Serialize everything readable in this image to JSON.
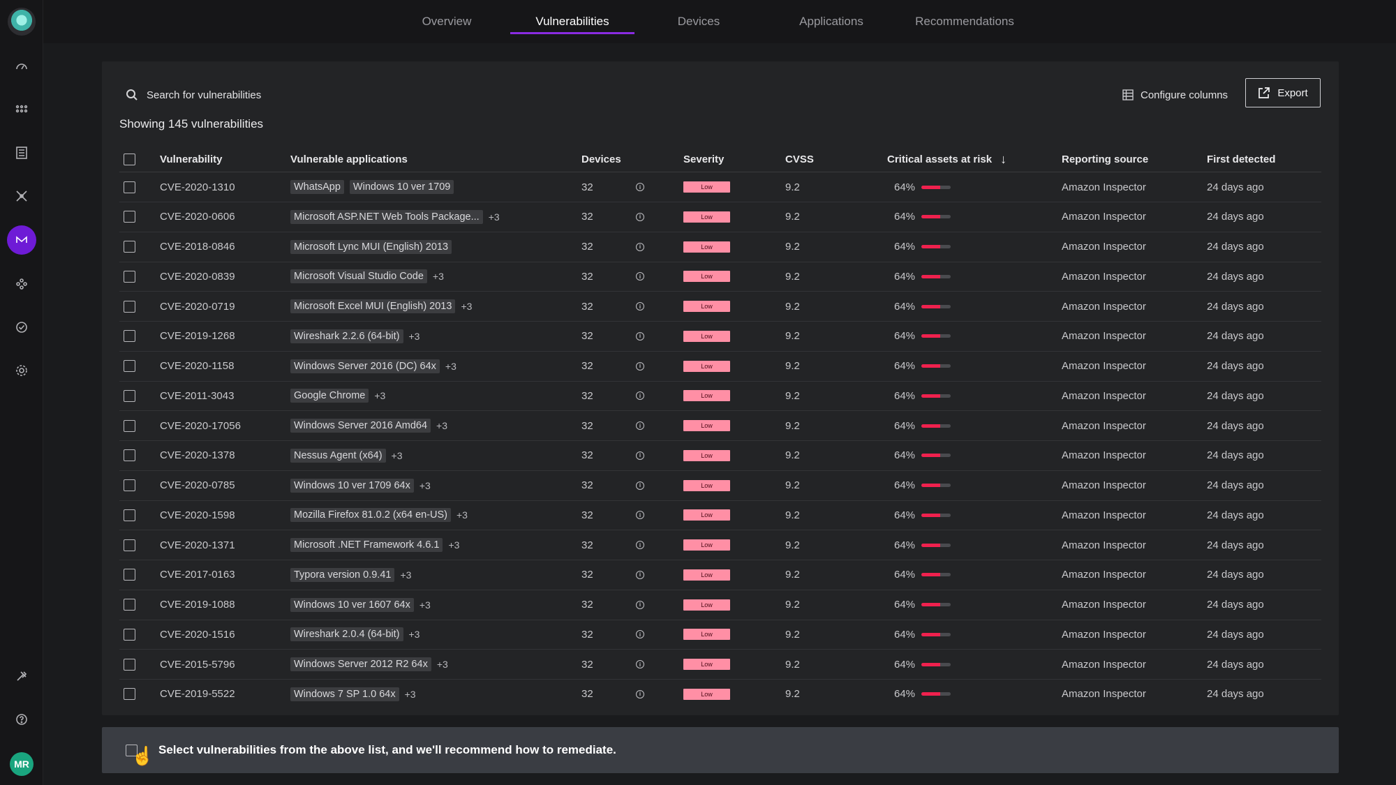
{
  "nav": {
    "tabs": [
      {
        "label": "Overview",
        "active": false
      },
      {
        "label": "Vulnerabilities",
        "active": true
      },
      {
        "label": "Devices",
        "active": false
      },
      {
        "label": "Applications",
        "active": false
      },
      {
        "label": "Recommendations",
        "active": false
      }
    ]
  },
  "sidebar": {
    "items": [
      "dashboard-icon",
      "apps-grid-icon",
      "list-icon",
      "network-icon",
      "brand-icon",
      "integrations-icon",
      "check-circle-icon",
      "settings-icon"
    ],
    "bottom": [
      "tools-icon",
      "help-icon"
    ],
    "avatar_initials": "MR"
  },
  "toolbar": {
    "search_placeholder": "Search for vulnerabilities",
    "configure_label": "Configure columns",
    "export_label": "Export"
  },
  "summary": "Showing 145 vulnerabilities",
  "table": {
    "headers": {
      "vulnerability": "Vulnerability",
      "applications": "Vulnerable applications",
      "devices": "Devices",
      "severity": "Severity",
      "cvss": "CVSS",
      "critical": "Critical assets at risk",
      "source": "Reporting source",
      "detected": "First detected"
    },
    "rows": [
      {
        "cve": "CVE-2020-1310",
        "apps": [
          "WhatsApp",
          "Windows 10 ver 1709"
        ],
        "more": "",
        "devices": "32",
        "severity": "Low",
        "cvss": "9.2",
        "critical": "64%",
        "critical_fraction": 0.64,
        "source": "Amazon Inspector",
        "detected": "24 days ago"
      },
      {
        "cve": "CVE-2020-0606",
        "apps": [
          "Microsoft ASP.NET Web Tools Package..."
        ],
        "more": "+3",
        "devices": "32",
        "severity": "Low",
        "cvss": "9.2",
        "critical": "64%",
        "critical_fraction": 0.64,
        "source": "Amazon Inspector",
        "detected": "24 days ago"
      },
      {
        "cve": "CVE-2018-0846",
        "apps": [
          "Microsoft Lync MUI (English) 2013"
        ],
        "more": "",
        "devices": "32",
        "severity": "Low",
        "cvss": "9.2",
        "critical": "64%",
        "critical_fraction": 0.64,
        "source": "Amazon Inspector",
        "detected": "24 days ago"
      },
      {
        "cve": "CVE-2020-0839",
        "apps": [
          "Microsoft Visual Studio Code"
        ],
        "more": "+3",
        "devices": "32",
        "severity": "Low",
        "cvss": "9.2",
        "critical": "64%",
        "critical_fraction": 0.64,
        "source": "Amazon Inspector",
        "detected": "24 days ago"
      },
      {
        "cve": "CVE-2020-0719",
        "apps": [
          "Microsoft Excel MUI (English) 2013"
        ],
        "more": "+3",
        "devices": "32",
        "severity": "Low",
        "cvss": "9.2",
        "critical": "64%",
        "critical_fraction": 0.64,
        "source": "Amazon Inspector",
        "detected": "24 days ago"
      },
      {
        "cve": "CVE-2019-1268",
        "apps": [
          "Wireshark 2.2.6 (64-bit)"
        ],
        "more": "+3",
        "devices": "32",
        "severity": "Low",
        "cvss": "9.2",
        "critical": "64%",
        "critical_fraction": 0.64,
        "source": "Amazon Inspector",
        "detected": "24 days ago"
      },
      {
        "cve": "CVE-2020-1158",
        "apps": [
          "Windows Server 2016 (DC) 64x"
        ],
        "more": "+3",
        "devices": "32",
        "severity": "Low",
        "cvss": "9.2",
        "critical": "64%",
        "critical_fraction": 0.64,
        "source": "Amazon Inspector",
        "detected": "24 days ago"
      },
      {
        "cve": "CVE-2011-3043",
        "apps": [
          "Google Chrome"
        ],
        "more": "+3",
        "devices": "32",
        "severity": "Low",
        "cvss": "9.2",
        "critical": "64%",
        "critical_fraction": 0.64,
        "source": "Amazon Inspector",
        "detected": "24 days ago"
      },
      {
        "cve": "CVE-2020-17056",
        "apps": [
          "Windows Server 2016 Amd64"
        ],
        "more": "+3",
        "devices": "32",
        "severity": "Low",
        "cvss": "9.2",
        "critical": "64%",
        "critical_fraction": 0.64,
        "source": "Amazon Inspector",
        "detected": "24 days ago"
      },
      {
        "cve": "CVE-2020-1378",
        "apps": [
          "Nessus Agent (x64)"
        ],
        "more": "+3",
        "devices": "32",
        "severity": "Low",
        "cvss": "9.2",
        "critical": "64%",
        "critical_fraction": 0.64,
        "source": "Amazon Inspector",
        "detected": "24 days ago"
      },
      {
        "cve": "CVE-2020-0785",
        "apps": [
          "Windows 10 ver 1709 64x"
        ],
        "more": "+3",
        "devices": "32",
        "severity": "Low",
        "cvss": "9.2",
        "critical": "64%",
        "critical_fraction": 0.64,
        "source": "Amazon Inspector",
        "detected": "24 days ago"
      },
      {
        "cve": "CVE-2020-1598",
        "apps": [
          "Mozilla Firefox 81.0.2 (x64 en-US)"
        ],
        "more": "+3",
        "devices": "32",
        "severity": "Low",
        "cvss": "9.2",
        "critical": "64%",
        "critical_fraction": 0.64,
        "source": "Amazon Inspector",
        "detected": "24 days ago"
      },
      {
        "cve": "CVE-2020-1371",
        "apps": [
          "Microsoft .NET Framework 4.6.1"
        ],
        "more": "+3",
        "devices": "32",
        "severity": "Low",
        "cvss": "9.2",
        "critical": "64%",
        "critical_fraction": 0.64,
        "source": "Amazon Inspector",
        "detected": "24 days ago"
      },
      {
        "cve": "CVE-2017-0163",
        "apps": [
          "Typora version 0.9.41"
        ],
        "more": "+3",
        "devices": "32",
        "severity": "Low",
        "cvss": "9.2",
        "critical": "64%",
        "critical_fraction": 0.64,
        "source": "Amazon Inspector",
        "detected": "24 days ago"
      },
      {
        "cve": "CVE-2019-1088",
        "apps": [
          "Windows 10 ver 1607 64x"
        ],
        "more": "+3",
        "devices": "32",
        "severity": "Low",
        "cvss": "9.2",
        "critical": "64%",
        "critical_fraction": 0.64,
        "source": "Amazon Inspector",
        "detected": "24 days ago"
      },
      {
        "cve": "CVE-2020-1516",
        "apps": [
          "Wireshark 2.0.4 (64-bit)"
        ],
        "more": "+3",
        "devices": "32",
        "severity": "Low",
        "cvss": "9.2",
        "critical": "64%",
        "critical_fraction": 0.64,
        "source": "Amazon Inspector",
        "detected": "24 days ago"
      },
      {
        "cve": "CVE-2015-5796",
        "apps": [
          "Windows Server 2012 R2 64x"
        ],
        "more": "+3",
        "devices": "32",
        "severity": "Low",
        "cvss": "9.2",
        "critical": "64%",
        "critical_fraction": 0.64,
        "source": "Amazon Inspector",
        "detected": "24 days ago"
      },
      {
        "cve": "CVE-2019-5522",
        "apps": [
          "Windows 7 SP 1.0 64x"
        ],
        "more": "+3",
        "devices": "32",
        "severity": "Low",
        "cvss": "9.2",
        "critical": "64%",
        "critical_fraction": 0.64,
        "source": "Amazon Inspector",
        "detected": "24 days ago"
      }
    ]
  },
  "footer": {
    "message": "Select vulnerabilities from the above list, and we'll recommend how to remediate."
  },
  "colors": {
    "accent": "#8a2be2",
    "severity_low_bg": "#ff8fa5",
    "risk_bar": "#f0214e",
    "avatar": "#1aa57f"
  }
}
